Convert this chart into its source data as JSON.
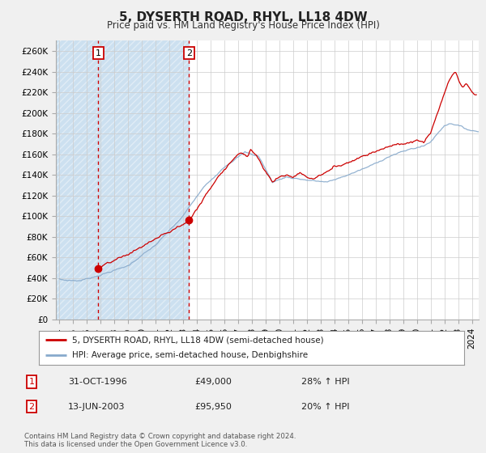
{
  "title": "5, DYSERTH ROAD, RHYL, LL18 4DW",
  "subtitle": "Price paid vs. HM Land Registry's House Price Index (HPI)",
  "ylabel_ticks": [
    "£0",
    "£20K",
    "£40K",
    "£60K",
    "£80K",
    "£100K",
    "£120K",
    "£140K",
    "£160K",
    "£180K",
    "£200K",
    "£220K",
    "£240K",
    "£260K"
  ],
  "ytick_values": [
    0,
    20000,
    40000,
    60000,
    80000,
    100000,
    120000,
    140000,
    160000,
    180000,
    200000,
    220000,
    240000,
    260000
  ],
  "ylim": [
    0,
    270000
  ],
  "sale1": {
    "date_num": 1996.83,
    "price": 49000,
    "label": "1",
    "date_str": "31-OCT-1996",
    "pct": "28% ↑ HPI"
  },
  "sale2": {
    "date_num": 2003.44,
    "price": 95950,
    "label": "2",
    "date_str": "13-JUN-2003",
    "pct": "20% ↑ HPI"
  },
  "legend_label_red": "5, DYSERTH ROAD, RHYL, LL18 4DW (semi-detached house)",
  "legend_label_blue": "HPI: Average price, semi-detached house, Denbighshire",
  "footer": "Contains HM Land Registry data © Crown copyright and database right 2024.\nThis data is licensed under the Open Government Licence v3.0.",
  "table_rows": [
    [
      "1",
      "31-OCT-1996",
      "£49,000",
      "28% ↑ HPI"
    ],
    [
      "2",
      "13-JUN-2003",
      "£95,950",
      "20% ↑ HPI"
    ]
  ],
  "red_color": "#cc0000",
  "blue_color": "#88aacc",
  "hatch_color": "#cce0f0",
  "xlim": [
    1993.75,
    2024.5
  ],
  "xtick_years": [
    1994,
    1995,
    1996,
    1997,
    1998,
    1999,
    2000,
    2001,
    2002,
    2003,
    2004,
    2005,
    2006,
    2007,
    2008,
    2009,
    2010,
    2011,
    2012,
    2013,
    2014,
    2015,
    2016,
    2017,
    2018,
    2019,
    2020,
    2021,
    2022,
    2023,
    2024
  ],
  "bg_color": "#f0f0f0",
  "plot_bg": "#ffffff",
  "grid_color": "#cccccc",
  "hatched_region_end": 2003.44
}
